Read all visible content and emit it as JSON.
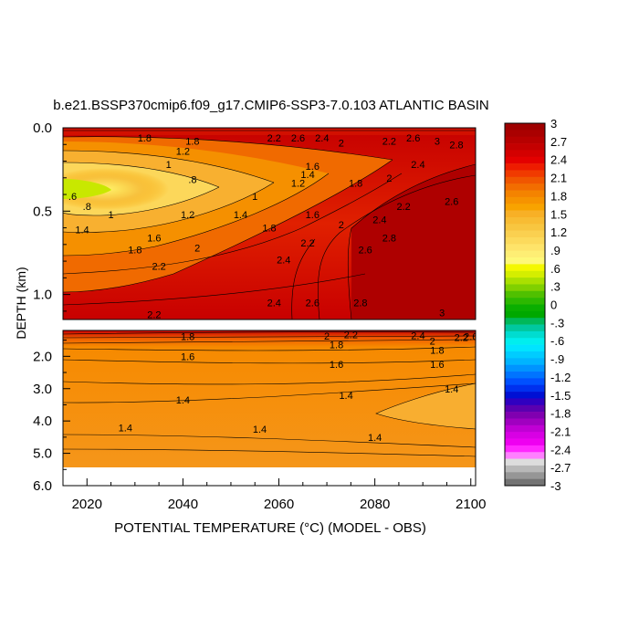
{
  "chart_data": {
    "type": "heatmap",
    "title": "b.e21.BSSP370cmip6.f09_g17.CMIP6-SSP3-7.0.103 ATLANTIC BASIN",
    "xlabel": "POTENTIAL TEMPERATURE (°C) (MODEL - OBS)",
    "ylabel": "DEPTH (km)",
    "xlim": [
      2015,
      2101
    ],
    "x_ticks": [
      "2020",
      "2040",
      "2060",
      "2080",
      "2100"
    ],
    "panels": [
      {
        "name": "upper",
        "ylim": [
          0.0,
          1.15
        ],
        "y_ticks": [
          "0.0",
          "0.5",
          "1.0"
        ],
        "contour_labels": [
          {
            "text": "1.8",
            "x": 2032,
            "y": 0.06
          },
          {
            "text": "1.8",
            "x": 2042,
            "y": 0.08
          },
          {
            "text": "2.2",
            "x": 2059,
            "y": 0.06
          },
          {
            "text": "2.6",
            "x": 2064,
            "y": 0.06
          },
          {
            "text": "2.4",
            "x": 2069,
            "y": 0.06
          },
          {
            "text": "2",
            "x": 2073,
            "y": 0.09
          },
          {
            "text": "2.2",
            "x": 2083,
            "y": 0.08
          },
          {
            "text": "2.6",
            "x": 2088,
            "y": 0.06
          },
          {
            "text": "3",
            "x": 2093,
            "y": 0.08
          },
          {
            "text": "2.8",
            "x": 2097,
            "y": 0.1
          },
          {
            "text": "1.2",
            "x": 2040,
            "y": 0.14
          },
          {
            "text": "1",
            "x": 2037,
            "y": 0.22
          },
          {
            "text": ".8",
            "x": 2042,
            "y": 0.31
          },
          {
            "text": "1.6",
            "x": 2067,
            "y": 0.23
          },
          {
            "text": "1.4",
            "x": 2066,
            "y": 0.28
          },
          {
            "text": "1.2",
            "x": 2064,
            "y": 0.33
          },
          {
            "text": "1.8",
            "x": 2076,
            "y": 0.33
          },
          {
            "text": "2",
            "x": 2083,
            "y": 0.3
          },
          {
            "text": "2.4",
            "x": 2089,
            "y": 0.22
          },
          {
            "text": ".6",
            "x": 2017,
            "y": 0.41
          },
          {
            "text": ".8",
            "x": 2020,
            "y": 0.47
          },
          {
            "text": "1",
            "x": 2025,
            "y": 0.52
          },
          {
            "text": "1",
            "x": 2055,
            "y": 0.41
          },
          {
            "text": "1.2",
            "x": 2041,
            "y": 0.52
          },
          {
            "text": "1.4",
            "x": 2052,
            "y": 0.52
          },
          {
            "text": "1.6",
            "x": 2067,
            "y": 0.52
          },
          {
            "text": "1.4",
            "x": 2019,
            "y": 0.61
          },
          {
            "text": "1.6",
            "x": 2034,
            "y": 0.66
          },
          {
            "text": "1.8",
            "x": 2058,
            "y": 0.6
          },
          {
            "text": "2",
            "x": 2073,
            "y": 0.58
          },
          {
            "text": "2.2",
            "x": 2086,
            "y": 0.47
          },
          {
            "text": "2.4",
            "x": 2081,
            "y": 0.55
          },
          {
            "text": "2.6",
            "x": 2096,
            "y": 0.44
          },
          {
            "text": "1.8",
            "x": 2030,
            "y": 0.73
          },
          {
            "text": "2",
            "x": 2043,
            "y": 0.72
          },
          {
            "text": "2.2",
            "x": 2066,
            "y": 0.69
          },
          {
            "text": "2.4",
            "x": 2061,
            "y": 0.79
          },
          {
            "text": "2.6",
            "x": 2078,
            "y": 0.73
          },
          {
            "text": "2.8",
            "x": 2083,
            "y": 0.66
          },
          {
            "text": "2.2",
            "x": 2035,
            "y": 0.83
          },
          {
            "text": "2.4",
            "x": 2059,
            "y": 1.05
          },
          {
            "text": "2.6",
            "x": 2067,
            "y": 1.05
          },
          {
            "text": "2.8",
            "x": 2077,
            "y": 1.05
          },
          {
            "text": "2.2",
            "x": 2034,
            "y": 1.12
          },
          {
            "text": "3",
            "x": 2094,
            "y": 1.11
          }
        ]
      },
      {
        "name": "lower",
        "ylim": [
          1.2,
          6.0
        ],
        "y_ticks": [
          "2.0",
          "3.0",
          "4.0",
          "5.0",
          "6.0"
        ],
        "contour_labels": [
          {
            "text": "1.8",
            "x": 2041,
            "y": 1.38
          },
          {
            "text": "2",
            "x": 2070,
            "y": 1.37
          },
          {
            "text": "2.2",
            "x": 2075,
            "y": 1.33
          },
          {
            "text": "2.4",
            "x": 2089,
            "y": 1.35
          },
          {
            "text": "2",
            "x": 2092,
            "y": 1.53
          },
          {
            "text": "2.2",
            "x": 2098,
            "y": 1.41
          },
          {
            "text": "2.6",
            "x": 2100,
            "y": 1.38
          },
          {
            "text": "1.8",
            "x": 2072,
            "y": 1.64
          },
          {
            "text": "1.8",
            "x": 2093,
            "y": 1.81
          },
          {
            "text": "1.6",
            "x": 2041,
            "y": 2.0
          },
          {
            "text": "1.6",
            "x": 2072,
            "y": 2.25
          },
          {
            "text": "1.6",
            "x": 2093,
            "y": 2.25
          },
          {
            "text": "1.4",
            "x": 2040,
            "y": 3.35
          },
          {
            "text": "1.4",
            "x": 2074,
            "y": 3.2
          },
          {
            "text": "1.4",
            "x": 2096,
            "y": 3.0
          },
          {
            "text": "1.4",
            "x": 2028,
            "y": 4.2
          },
          {
            "text": "1.4",
            "x": 2056,
            "y": 4.25
          },
          {
            "text": "1.4",
            "x": 2080,
            "y": 4.5
          }
        ]
      }
    ],
    "colorbar": {
      "labels": [
        "3",
        "2.7",
        "2.4",
        "2.1",
        "1.8",
        "1.5",
        "1.2",
        ".9",
        ".6",
        ".3",
        "0",
        "-.3",
        "-.6",
        "-.9",
        "-1.2",
        "-1.5",
        "-1.8",
        "-2.1",
        "-2.4",
        "-2.7",
        "-3"
      ],
      "colors_top_to_bottom": [
        "#9E0000",
        "#AA0000",
        "#B70000",
        "#C40000",
        "#D40000",
        "#E40000",
        "#EE1C00",
        "#F03A00",
        "#F05600",
        "#F26D00",
        "#F48300",
        "#F69300",
        "#F8A300",
        "#F8B026",
        "#F8BC33",
        "#F8C640",
        "#FAD050",
        "#FCDA5C",
        "#FEE46A",
        "#FEEE74",
        "#FEF878",
        "#F4F800",
        "#D4EE00",
        "#AAE000",
        "#80D000",
        "#50C000",
        "#2CB800",
        "#0AAE00",
        "#00A800",
        "#00B85A",
        "#00C8A0",
        "#00DCD0",
        "#00EEEE",
        "#00E4FF",
        "#00CCFF",
        "#00B4FF",
        "#0094FF",
        "#0074FF",
        "#0050FF",
        "#0030EE",
        "#0010D4",
        "#3000C0",
        "#5A00B0",
        "#8000B0",
        "#A000C0",
        "#C000D4",
        "#D800E4",
        "#EE00F0",
        "#FF28FF",
        "#FF80FF",
        "#DDDDDD",
        "#B8B8B8",
        "#969696",
        "#737373"
      ]
    }
  }
}
